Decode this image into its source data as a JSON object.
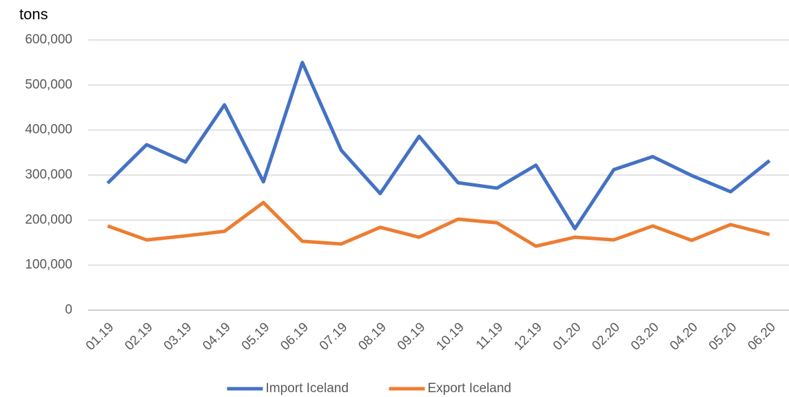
{
  "chart_data": {
    "type": "line",
    "y_unit_label": "tons",
    "categories": [
      "01.19",
      "02.19",
      "03.19",
      "04.19",
      "05.19",
      "06.19",
      "07.19",
      "08.19",
      "09.19",
      "10.19",
      "11.19",
      "12.19",
      "01.20",
      "02.20",
      "03.20",
      "04.20",
      "05.20",
      "06.20"
    ],
    "series": [
      {
        "name": "Import Iceland",
        "color": "#4472c4",
        "values": [
          282000,
          367500,
          329000,
          456000,
          285000,
          550000,
          355000,
          259000,
          386000,
          283000,
          271000,
          322000,
          181000,
          312000,
          341000,
          299000,
          263000,
          332000
        ]
      },
      {
        "name": "Export Iceland",
        "color": "#ed7d31",
        "values": [
          187000,
          156000,
          165000,
          175000,
          239000,
          153000,
          147000,
          184000,
          162000,
          202000,
          194000,
          142000,
          162000,
          156000,
          187000,
          155000,
          190000,
          168000
        ]
      }
    ],
    "ylim": [
      0,
      600000
    ],
    "yticks": [
      0,
      {
        "value": 100000,
        "label": "100,000"
      },
      {
        "value": 200000,
        "label": "200,000"
      },
      {
        "value": 300000,
        "label": "300,000"
      },
      {
        "value": 400000,
        "label": "400,000"
      },
      {
        "value": 500000,
        "label": "500,000"
      },
      {
        "value": 600000,
        "label": "600,000"
      }
    ],
    "grid": true,
    "legend": "bottom"
  }
}
